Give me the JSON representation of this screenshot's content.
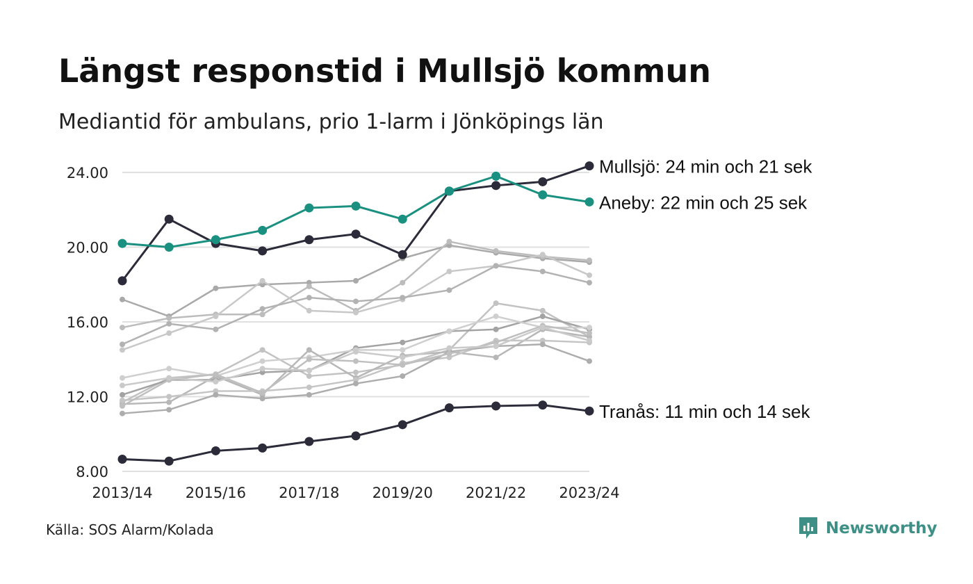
{
  "chart_data": {
    "type": "line",
    "title": "Längst responstid i Mullsjö kommun",
    "subtitle": "Mediantid för ambulans, prio 1-larm i Jönköpings län",
    "source": "Källa: SOS Alarm/Kolada",
    "brand": "Newsworthy",
    "x": [
      "2013/14",
      "2014/15",
      "2015/16",
      "2016/17",
      "2017/18",
      "2018/19",
      "2019/20",
      "2020/21",
      "2021/22",
      "2022/23",
      "2023/24"
    ],
    "x_ticks": [
      "2013/14",
      "2015/16",
      "2017/18",
      "2019/20",
      "2021/22",
      "2023/24"
    ],
    "y_ticks": [
      "24.00",
      "20.00",
      "16.00",
      "12.00",
      "8.00"
    ],
    "ylim": [
      8,
      24
    ],
    "grid": true,
    "colors": {
      "highlight_dark": "#2b2b3a",
      "highlight_teal": "#1a9080",
      "background_lines": [
        "#a9a9a9",
        "#bcbcbc",
        "#c8c8c8",
        "#b2b2b2",
        "#c2c2c2",
        "#a3a3a3",
        "#cfcfcf",
        "#b7b7b7",
        "#c5c5c5",
        "#adadad",
        "#bfbfbf",
        "#cacaca"
      ],
      "gridline": "#e0e0e0",
      "brand": "#3e8f86"
    },
    "background_series": [
      {
        "values": [
          17.2,
          16.3,
          17.8,
          18.0,
          18.1,
          18.2,
          19.4,
          20.1,
          19.7,
          19.4,
          19.2
        ]
      },
      {
        "values": [
          15.7,
          16.2,
          16.4,
          16.4,
          17.9,
          16.6,
          18.1,
          20.3,
          19.8,
          19.5,
          19.3
        ]
      },
      {
        "values": [
          14.5,
          15.4,
          16.3,
          18.2,
          16.6,
          16.5,
          17.2,
          18.7,
          19.0,
          19.6,
          18.5
        ]
      },
      {
        "values": [
          14.8,
          15.9,
          15.6,
          16.7,
          17.3,
          17.1,
          17.3,
          17.7,
          19.0,
          18.7,
          18.1
        ]
      },
      {
        "values": [
          11.7,
          13.0,
          13.2,
          14.5,
          13.1,
          13.3,
          13.7,
          14.5,
          17.0,
          16.6,
          15.2
        ]
      },
      {
        "values": [
          12.1,
          12.9,
          12.9,
          13.3,
          13.4,
          14.6,
          14.9,
          15.5,
          15.6,
          16.3,
          15.6
        ]
      },
      {
        "values": [
          13.0,
          13.5,
          13.1,
          13.9,
          14.1,
          14.5,
          14.5,
          15.5,
          16.3,
          15.7,
          15.7
        ]
      },
      {
        "values": [
          11.6,
          11.7,
          13.1,
          12.1,
          14.5,
          13.0,
          14.2,
          14.4,
          14.1,
          15.6,
          15.2
        ]
      },
      {
        "values": [
          11.8,
          12.0,
          12.3,
          12.3,
          12.5,
          12.9,
          13.8,
          14.1,
          15.0,
          15.0,
          14.9
        ]
      },
      {
        "values": [
          11.1,
          11.3,
          12.1,
          11.9,
          12.1,
          12.7,
          13.1,
          14.4,
          14.7,
          14.8,
          13.9
        ]
      },
      {
        "values": [
          11.5,
          12.9,
          13.2,
          12.2,
          14.0,
          13.9,
          13.7,
          14.3,
          14.9,
          15.8,
          15.4
        ]
      },
      {
        "values": [
          12.6,
          13.0,
          12.8,
          13.5,
          13.4,
          14.4,
          14.1,
          14.6,
          14.7,
          15.7,
          15.0
        ]
      }
    ],
    "series": [
      {
        "name": "Mullsjö",
        "label": "Mullsjö: 24 min och 21 sek",
        "color": "#2b2b3a",
        "values": [
          18.2,
          21.5,
          20.2,
          19.8,
          20.4,
          20.7,
          19.6,
          23.0,
          23.3,
          23.5,
          24.35
        ]
      },
      {
        "name": "Aneby",
        "label": "Aneby: 22 min och 25 sek",
        "color": "#1a9080",
        "values": [
          20.2,
          20.0,
          20.4,
          20.9,
          22.1,
          22.2,
          21.5,
          23.0,
          23.8,
          22.8,
          22.42
        ]
      },
      {
        "name": "Tranås",
        "label": "Tranås: 11 min och 14 sek",
        "color": "#2b2b3a",
        "values": [
          8.65,
          8.55,
          9.1,
          9.25,
          9.6,
          9.9,
          10.5,
          11.4,
          11.5,
          11.55,
          11.23
        ]
      }
    ]
  }
}
